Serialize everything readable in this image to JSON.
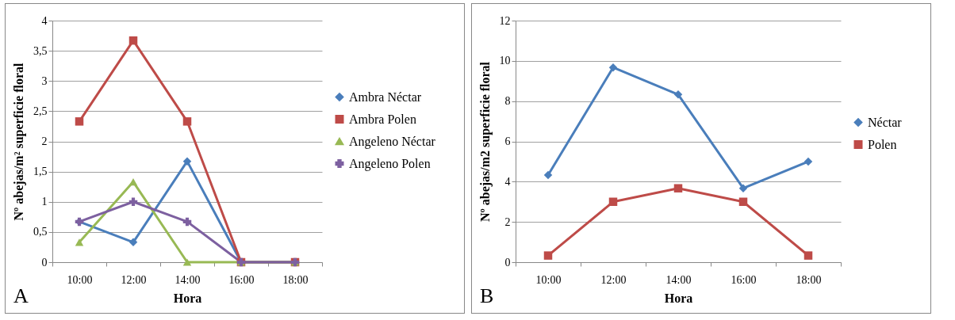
{
  "chart_data": [
    {
      "type": "line",
      "xlabel": "Hora",
      "ylabel": "Nº abejas/m² superficie floral",
      "categories": [
        "10:00",
        "12:00",
        "14:00",
        "16:00",
        "18:00"
      ],
      "series": [
        {
          "name": "Ambra Néctar",
          "color": "#4a7ebb",
          "marker": "diamond",
          "values": [
            0.67,
            0.33,
            1.67,
            0,
            0
          ]
        },
        {
          "name": "Ambra Polen",
          "color": "#be4b48",
          "marker": "square",
          "values": [
            2.33,
            3.67,
            2.33,
            0,
            0
          ]
        },
        {
          "name": "Angeleno Néctar",
          "color": "#98b954",
          "marker": "triangle",
          "values": [
            0.33,
            1.33,
            0,
            0,
            0
          ]
        },
        {
          "name": "Angeleno Polen",
          "color": "#7d60a0",
          "marker": "cross",
          "values": [
            0.67,
            1,
            0.67,
            0,
            0
          ]
        }
      ],
      "ylim": [
        0,
        4
      ],
      "yticks": [
        0,
        {
          "value": 0.5,
          "label": "0,5"
        },
        1,
        {
          "value": 1.5,
          "label": "1,5"
        },
        2,
        {
          "value": 2.5,
          "label": "2,5"
        },
        3,
        {
          "value": 3.5,
          "label": "3,5"
        },
        4
      ],
      "grid": "y",
      "legend": "right",
      "annotations": [
        "A"
      ]
    },
    {
      "type": "line",
      "xlabel": "Hora",
      "ylabel": "Nº abejas/m2 superficie floral",
      "categories": [
        "10:00",
        "12:00",
        "14:00",
        "16:00",
        "18:00"
      ],
      "series": [
        {
          "name": "Néctar",
          "color": "#4a7ebb",
          "marker": "diamond",
          "values": [
            4.33,
            9.67,
            8.33,
            3.67,
            5
          ]
        },
        {
          "name": "Polen",
          "color": "#be4b48",
          "marker": "square",
          "values": [
            0.33,
            3,
            3.67,
            3,
            0.33
          ]
        }
      ],
      "ylim": [
        0,
        12
      ],
      "yticks": [
        0,
        2,
        4,
        6,
        8,
        10,
        12
      ],
      "grid": "y",
      "legend": "right",
      "annotations": [
        "B"
      ]
    }
  ]
}
